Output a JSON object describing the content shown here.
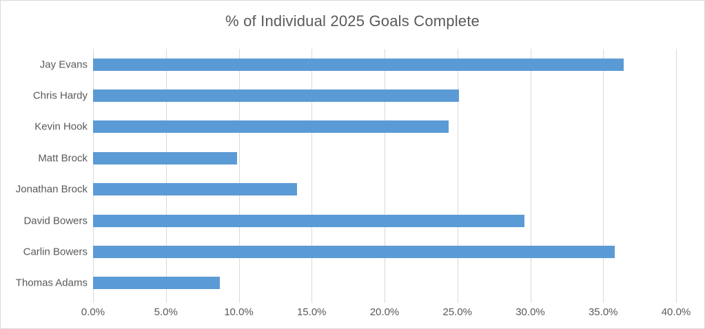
{
  "chart_data": {
    "type": "bar",
    "orientation": "horizontal",
    "title": "% of Individual 2025 Goals Complete",
    "categories": [
      "Jay Evans",
      "Chris Hardy",
      "Kevin Hook",
      "Matt Brock",
      "Jonathan Brock",
      "David Bowers",
      "Carlin Bowers",
      "Thomas Adams"
    ],
    "values": [
      36.4,
      25.1,
      24.4,
      9.9,
      14.0,
      29.6,
      35.8,
      8.7
    ],
    "unit": "%",
    "xlabel": "",
    "ylabel": "",
    "xlim": [
      0,
      40
    ],
    "x_tick_step": 5,
    "x_tick_labels": [
      "0.0%",
      "5.0%",
      "10.0%",
      "15.0%",
      "20.0%",
      "25.0%",
      "30.0%",
      "35.0%",
      "40.0%"
    ],
    "grid": true,
    "legend": false,
    "colors": {
      "bar": "#5b9bd5",
      "gridline": "#d9d9d9",
      "text": "#595959",
      "border": "#d9d9d9",
      "background": "#ffffff"
    }
  }
}
